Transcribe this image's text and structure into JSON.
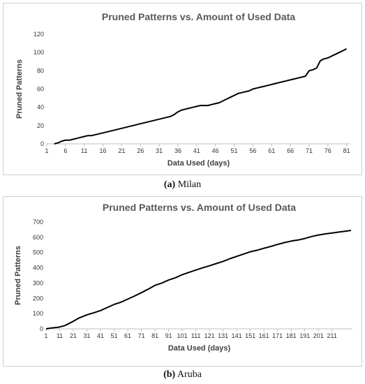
{
  "captions": {
    "a": {
      "letter": "(a)",
      "name": " Milan"
    },
    "b": {
      "letter": "(b)",
      "name": " Aruba"
    }
  },
  "chart_data": [
    {
      "type": "line",
      "title": "Pruned Patterns vs. Amount of Used Data",
      "xlabel": "Data Used (days)",
      "ylabel": "Pruned Patterns",
      "xlim": [
        1,
        82
      ],
      "ylim": [
        0,
        120
      ],
      "x_ticks": [
        "1",
        "6",
        "11",
        "16",
        "21",
        "26",
        "31",
        "36",
        "41",
        "46",
        "51",
        "56",
        "61",
        "66",
        "71",
        "76",
        "81"
      ],
      "y_ticks": [
        "0",
        "20",
        "40",
        "60",
        "80",
        "100",
        "120"
      ],
      "grid": false,
      "legend": "none",
      "line_color": "#000000",
      "series": [
        {
          "x": [
            3,
            4,
            5,
            6,
            7,
            8,
            9,
            10,
            11,
            12,
            13,
            16,
            21,
            26,
            31,
            34,
            35,
            36,
            37,
            38,
            39,
            40,
            41,
            42,
            43,
            44,
            45,
            46,
            47,
            48,
            49,
            50,
            51,
            52,
            53,
            54,
            55,
            56,
            57,
            58,
            59,
            60,
            61,
            62,
            63,
            64,
            65,
            66,
            67,
            68,
            69,
            70,
            71,
            72,
            73,
            74,
            75,
            76,
            77,
            78,
            79,
            80,
            81
          ],
          "y": [
            0,
            1,
            3,
            4,
            4,
            5,
            6,
            7,
            8,
            9,
            9,
            12,
            17,
            22,
            27,
            30,
            32,
            35,
            37,
            38,
            39,
            40,
            41,
            42,
            42,
            42,
            43,
            44,
            45,
            47,
            49,
            51,
            53,
            55,
            56,
            57,
            58,
            60,
            61,
            62,
            63,
            64,
            65,
            66,
            67,
            68,
            69,
            70,
            71,
            72,
            73,
            74,
            80,
            81,
            83,
            91,
            93,
            94,
            96,
            98,
            100,
            102,
            104
          ]
        }
      ]
    },
    {
      "type": "line",
      "title": "Pruned Patterns vs. Amount of Used Data",
      "xlabel": "Data Used (days)",
      "ylabel": "Pruned Patterns",
      "xlim": [
        1,
        226
      ],
      "ylim": [
        0,
        700
      ],
      "x_ticks": [
        "1",
        "11",
        "21",
        "31",
        "41",
        "51",
        "61",
        "71",
        "81",
        "91",
        "101",
        "111",
        "121",
        "131",
        "141",
        "151",
        "161",
        "171",
        "181",
        "191",
        "201",
        "211"
      ],
      "y_ticks": [
        "0",
        "100",
        "200",
        "300",
        "400",
        "500",
        "600",
        "700"
      ],
      "grid": false,
      "legend": "none",
      "line_color": "#000000",
      "series": [
        {
          "x": [
            1,
            5,
            10,
            15,
            20,
            25,
            31,
            36,
            41,
            46,
            51,
            56,
            61,
            66,
            71,
            76,
            81,
            86,
            91,
            96,
            101,
            106,
            111,
            116,
            121,
            126,
            131,
            136,
            141,
            146,
            151,
            156,
            161,
            166,
            171,
            176,
            181,
            186,
            191,
            196,
            201,
            206,
            211,
            216,
            221,
            225
          ],
          "y": [
            0,
            6,
            10,
            22,
            45,
            70,
            92,
            105,
            120,
            140,
            160,
            175,
            195,
            215,
            237,
            260,
            285,
            300,
            320,
            335,
            355,
            370,
            385,
            400,
            413,
            428,
            442,
            460,
            475,
            490,
            505,
            515,
            528,
            540,
            553,
            565,
            575,
            582,
            592,
            605,
            615,
            622,
            628,
            634,
            640,
            645
          ]
        }
      ]
    }
  ]
}
